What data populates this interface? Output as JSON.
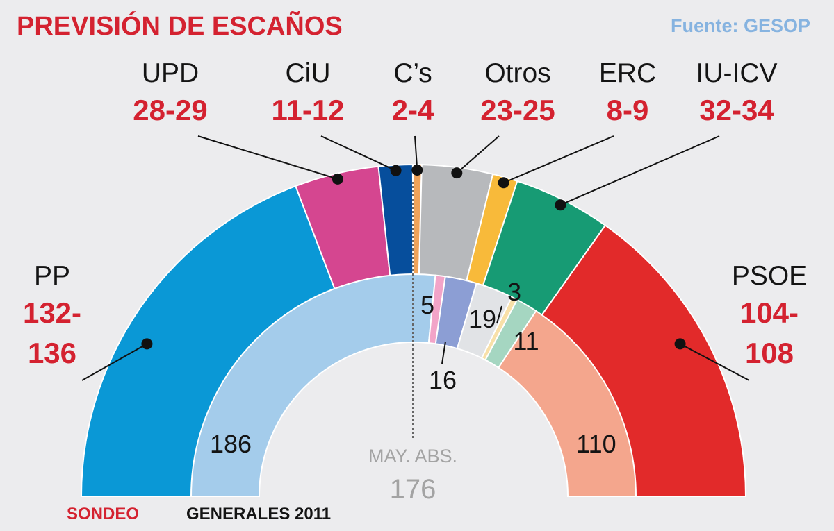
{
  "chart_data": {
    "type": "pie",
    "title": "PREVISIÓN DE ESCAÑOS",
    "source": "Fuente: GESOP",
    "total_seats": 350,
    "majority_label": "MAY. ABS.",
    "majority_value": "176",
    "rings": {
      "outer": "SONDEO",
      "inner": "GENERALES 2011"
    },
    "parties": [
      {
        "name": "PP",
        "range": "132-136",
        "range_lines": [
          "132-",
          "136"
        ],
        "min": 132,
        "max": 136,
        "mid": 134,
        "color": "#0a98d6",
        "color_2011": "#a4cceb",
        "seats_2011": "186"
      },
      {
        "name": "UPD",
        "range": "28-29",
        "min": 28,
        "max": 29,
        "mid": 28.5,
        "color": "#d54690",
        "color_2011": "#f2a4c8",
        "seats_2011": "5"
      },
      {
        "name": "CiU",
        "range": "11-12",
        "min": 11,
        "max": 12,
        "mid": 11.5,
        "color": "#064e9c",
        "color_2011": "#8c9ed4",
        "seats_2011": "16"
      },
      {
        "name": "C’s",
        "range": "2-4",
        "min": 2,
        "max": 4,
        "mid": 3,
        "color": "#f0a35a",
        "color_2011": "#f6cfa2",
        "seats_2011": ""
      },
      {
        "name": "Otros",
        "range": "23-25",
        "min": 23,
        "max": 25,
        "mid": 24,
        "color": "#b7b9bc",
        "color_2011": "#e1e3e6",
        "seats_2011": "19"
      },
      {
        "name": "ERC",
        "range": "8-9",
        "min": 8,
        "max": 9,
        "mid": 8.5,
        "color": "#f8ba3a",
        "color_2011": "#f8e0a8",
        "seats_2011": "3"
      },
      {
        "name": "IU-ICV",
        "range": "32-34",
        "min": 32,
        "max": 34,
        "mid": 33,
        "color": "#179b74",
        "color_2011": "#a5d6c1",
        "seats_2011": "11"
      },
      {
        "name": "PSOE",
        "range": "104-108",
        "range_lines": [
          "104-",
          "108"
        ],
        "min": 104,
        "max": 108,
        "mid": 106,
        "color": "#e22a2a",
        "color_2011": "#f4a68d",
        "seats_2011": "110"
      }
    ]
  }
}
